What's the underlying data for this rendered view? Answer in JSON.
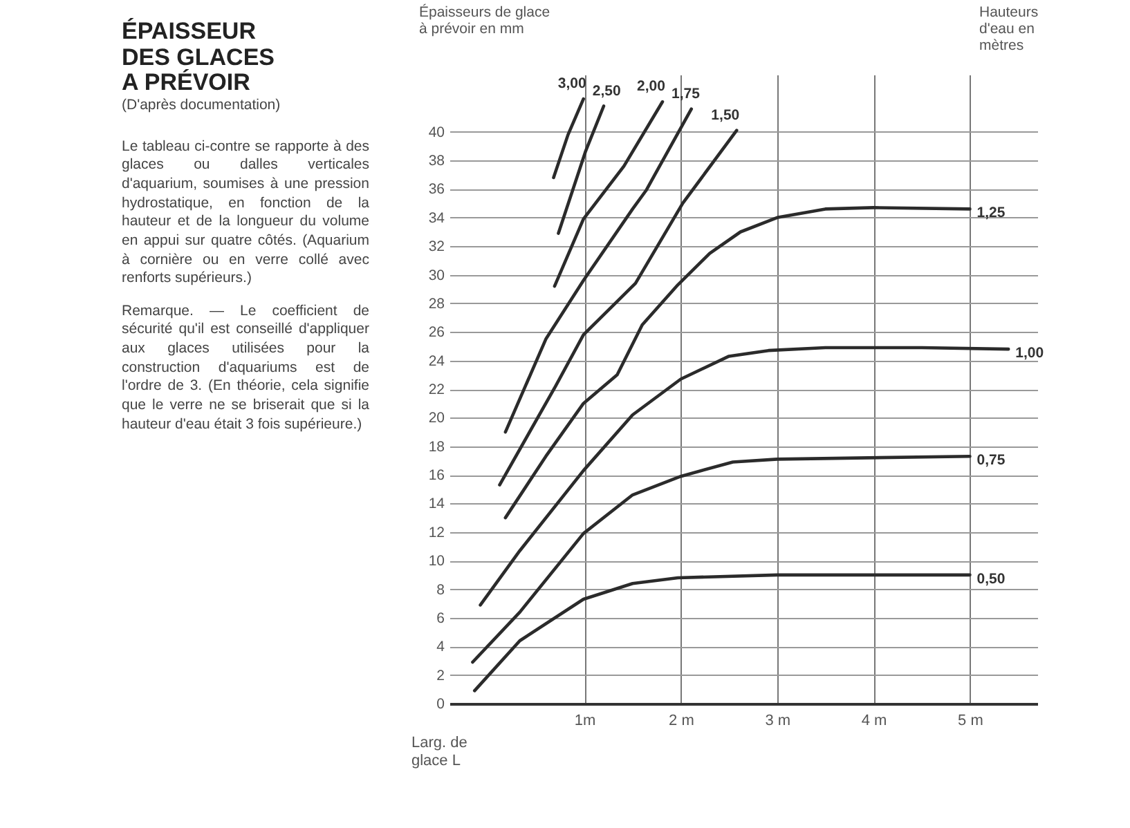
{
  "chart_data": {
    "type": "line",
    "title": "ÉPAISSEUR DES GLACES A PRÉVOIR",
    "subtitle": "(D'après documentation)",
    "annotations": [
      "Le tableau ci-contre se rapporte à des glaces ou dalles verticales d'aquarium, soumises à une pression hydrostatique, en fonction de la hauteur et de la longueur du volume en appui sur quatre côtés. (Aquarium à cornière ou en verre collé avec renforts supérieurs.)",
      "Remarque. — Le coefficient de sécurité qu'il est conseillé d'appliquer aux glaces utilisées pour la construction d'aquariums est de l'ordre de 3. (En théorie, cela signifie que le verre ne se briserait que si la hauteur d'eau était 3 fois supérieure.)"
    ],
    "xlabel": "Larg. de glace L",
    "ylabel": "Épaisseurs de glace à prévoir en mm",
    "legend_title": "Hauteurs d'eau en mètres",
    "xlim": [
      -0.4,
      5.7
    ],
    "ylim": [
      0,
      44
    ],
    "xticks": [
      {
        "value": 1,
        "label": "1m"
      },
      {
        "value": 2,
        "label": "2 m"
      },
      {
        "value": 3,
        "label": "3 m"
      },
      {
        "value": 4,
        "label": "4 m"
      },
      {
        "value": 5,
        "label": "5 m"
      }
    ],
    "yticks": [
      0,
      2,
      4,
      6,
      8,
      10,
      12,
      14,
      16,
      18,
      20,
      22,
      24,
      26,
      28,
      30,
      32,
      34,
      36,
      38,
      40
    ],
    "grid": true,
    "legend": false,
    "marker": "none",
    "line_style": "solid",
    "series": [
      {
        "name": "3,00",
        "color": "#2b2b2b",
        "x": [
          0.68,
          0.83,
          0.99
        ],
        "values": [
          36.8,
          39.8,
          42.3
        ]
      },
      {
        "name": "2,50",
        "color": "#2b2b2b",
        "x": [
          0.73,
          1.01,
          1.2
        ],
        "values": [
          32.9,
          38.6,
          41.8
        ]
      },
      {
        "name": "2,00",
        "color": "#2b2b2b",
        "x": [
          0.69,
          0.99,
          1.41,
          1.81
        ],
        "values": [
          29.2,
          33.9,
          37.6,
          42.1
        ]
      },
      {
        "name": "1,75",
        "color": "#2b2b2b",
        "x": [
          0.18,
          0.6,
          0.99,
          1.5,
          1.64,
          2.11
        ],
        "values": [
          19.0,
          25.5,
          29.6,
          34.6,
          35.9,
          41.6
        ]
      },
      {
        "name": "1,50",
        "color": "#2b2b2b",
        "x": [
          0.12,
          0.7,
          0.99,
          1.53,
          2.02,
          2.58
        ],
        "values": [
          15.3,
          22.2,
          25.8,
          29.4,
          35.0,
          40.1
        ]
      },
      {
        "name": "1,25",
        "color": "#2b2b2b",
        "x": [
          0.18,
          0.6,
          0.99,
          1.34,
          1.6,
          1.97,
          2.3,
          2.62,
          3.0,
          3.5,
          4.0,
          5.0
        ],
        "values": [
          13.0,
          17.3,
          21.0,
          23.0,
          26.5,
          29.3,
          31.5,
          33.0,
          34.0,
          34.6,
          34.7,
          34.6
        ]
      },
      {
        "name": "1,00",
        "color": "#2b2b2b",
        "x": [
          -0.08,
          0.33,
          0.99,
          1.5,
          2.0,
          2.5,
          2.91,
          3.5,
          4.5,
          5.4
        ],
        "values": [
          6.9,
          10.7,
          16.3,
          20.2,
          22.7,
          24.3,
          24.7,
          24.9,
          24.9,
          24.8
        ]
      },
      {
        "name": "0,75",
        "color": "#2b2b2b",
        "x": [
          -0.16,
          0.33,
          0.99,
          1.5,
          2.0,
          2.54,
          3.0,
          5.0
        ],
        "values": [
          2.9,
          6.4,
          11.9,
          14.6,
          15.9,
          16.9,
          17.1,
          17.3
        ]
      },
      {
        "name": "0,50",
        "color": "#2b2b2b",
        "x": [
          -0.14,
          0.33,
          0.99,
          1.5,
          1.97,
          3.0,
          5.0
        ],
        "values": [
          0.9,
          4.4,
          7.3,
          8.4,
          8.8,
          9.0,
          9.0
        ]
      }
    ]
  }
}
